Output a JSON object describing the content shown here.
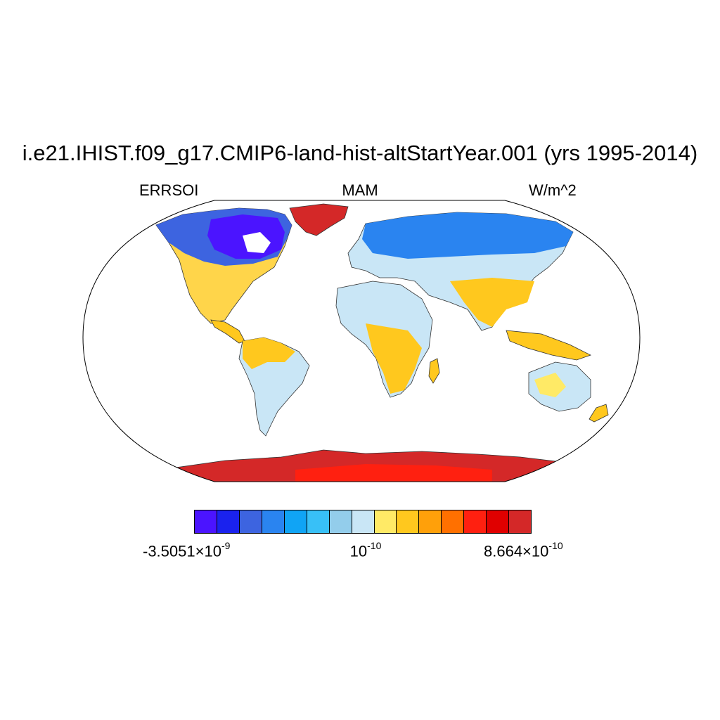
{
  "title": "i.e21.IHIST.f09_g17.CMIP6-land-hist-altStartYear.001 (yrs 1995-2014)",
  "subtitles": {
    "left": "ERRSOI",
    "center": "MAM",
    "right": "W/m^2"
  },
  "map": {
    "projection": "Robinson",
    "background": "#ffffff",
    "coastline_color": "#333333"
  },
  "colorbar": {
    "colors": [
      "#4b14ff",
      "#1a22ee",
      "#3d64e0",
      "#2a84f0",
      "#10a4f5",
      "#38c0f7",
      "#93cdeb",
      "#c9e6f6",
      "#ffea66",
      "#ffc81e",
      "#ffa00a",
      "#ff7000",
      "#ff2010",
      "#e00000",
      "#d42828"
    ],
    "labels": [
      {
        "mantissa": "-3.5051×10",
        "exponent": "-9"
      },
      {
        "mantissa": "10",
        "exponent": "-10"
      },
      {
        "mantissa": "8.664×10",
        "exponent": "-10"
      }
    ]
  }
}
